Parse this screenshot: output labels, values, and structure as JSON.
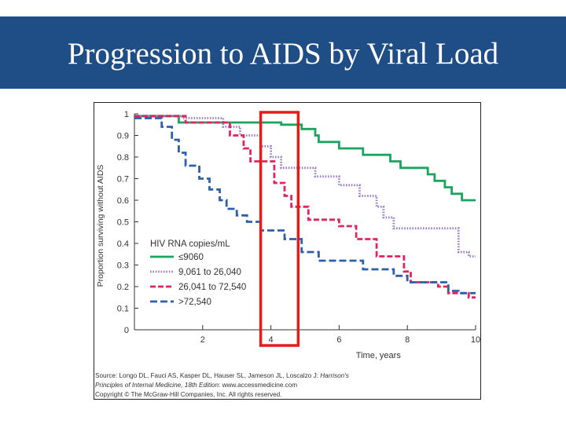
{
  "slide": {
    "title": "Progression to AIDS by Viral Load",
    "source_line1_plain": "Source: Longo DL, Fauci AS, Kasper DL, Hauser SL, Jameson JL, Loscalzo J: ",
    "source_line1_italic": "Harrison's",
    "source_line2_italic": "Principles of Internal Medicine, 18th Edition",
    "source_line2_plain": ": www.accessmedicine.com",
    "copyright": "Copyright © The McGraw-Hill Companies, Inc. All rights reserved."
  },
  "colors": {
    "title_bar": "#1f4e86",
    "highlight_box": "#e41c1c",
    "axis": "#333333"
  },
  "chart_data": {
    "type": "line",
    "step": true,
    "title": "",
    "xlabel": "Time, years",
    "ylabel": "Proportion surviving without AIDS",
    "xlim": [
      0,
      10
    ],
    "ylim": [
      0,
      1
    ],
    "xticks": [
      2,
      4,
      6,
      8,
      10
    ],
    "yticks": [
      0,
      0.1,
      0.2,
      0.3,
      0.4,
      0.5,
      0.6,
      0.7,
      0.8,
      0.9,
      1
    ],
    "ytick_labels": [
      "0",
      "0.1",
      "0.2",
      "0.3",
      "0.4",
      "0.5",
      "0.6",
      "0.7",
      "0.8",
      "0.9",
      "1"
    ],
    "legend_title": "HIV RNA copies/mL",
    "legend_position": "lower-left",
    "highlight": {
      "x_from": 3.7,
      "x_to": 4.8
    },
    "series": [
      {
        "name": "≤9060",
        "color": "#1aa45f",
        "dash": "solid",
        "points": [
          [
            0,
            0.99
          ],
          [
            1.3,
            0.99
          ],
          [
            1.3,
            0.96
          ],
          [
            4.3,
            0.96
          ],
          [
            4.3,
            0.95
          ],
          [
            4.9,
            0.95
          ],
          [
            4.9,
            0.93
          ],
          [
            5.3,
            0.93
          ],
          [
            5.3,
            0.9
          ],
          [
            5.4,
            0.9
          ],
          [
            5.4,
            0.87
          ],
          [
            6,
            0.87
          ],
          [
            6,
            0.84
          ],
          [
            6.7,
            0.84
          ],
          [
            6.7,
            0.81
          ],
          [
            7.5,
            0.81
          ],
          [
            7.5,
            0.78
          ],
          [
            7.8,
            0.78
          ],
          [
            7.8,
            0.75
          ],
          [
            8.6,
            0.75
          ],
          [
            8.6,
            0.72
          ],
          [
            8.8,
            0.72
          ],
          [
            8.8,
            0.69
          ],
          [
            9.1,
            0.69
          ],
          [
            9.1,
            0.66
          ],
          [
            9.3,
            0.66
          ],
          [
            9.3,
            0.63
          ],
          [
            9.6,
            0.63
          ],
          [
            9.6,
            0.6
          ],
          [
            10,
            0.6
          ]
        ]
      },
      {
        "name": "9,061 to 26,040",
        "color": "#9b7fc7",
        "dash": "dotted",
        "points": [
          [
            0,
            0.99
          ],
          [
            1.4,
            0.99
          ],
          [
            1.4,
            0.98
          ],
          [
            2.6,
            0.98
          ],
          [
            2.6,
            0.94
          ],
          [
            3.1,
            0.94
          ],
          [
            3.1,
            0.9
          ],
          [
            3.7,
            0.9
          ],
          [
            3.7,
            0.85
          ],
          [
            4,
            0.85
          ],
          [
            4,
            0.8
          ],
          [
            4.3,
            0.8
          ],
          [
            4.3,
            0.75
          ],
          [
            5.3,
            0.75
          ],
          [
            5.3,
            0.71
          ],
          [
            6,
            0.71
          ],
          [
            6,
            0.67
          ],
          [
            6.6,
            0.67
          ],
          [
            6.6,
            0.62
          ],
          [
            7.1,
            0.62
          ],
          [
            7.1,
            0.57
          ],
          [
            7.3,
            0.57
          ],
          [
            7.3,
            0.52
          ],
          [
            7.6,
            0.52
          ],
          [
            7.6,
            0.47
          ],
          [
            9.5,
            0.47
          ],
          [
            9.5,
            0.36
          ],
          [
            9.8,
            0.36
          ],
          [
            9.8,
            0.34
          ],
          [
            10,
            0.34
          ]
        ]
      },
      {
        "name": "26,041 to 72,540",
        "color": "#e0245e",
        "dash": "dashed",
        "points": [
          [
            0,
            0.99
          ],
          [
            1.5,
            0.99
          ],
          [
            1.5,
            0.96
          ],
          [
            2.8,
            0.96
          ],
          [
            2.8,
            0.9
          ],
          [
            3.2,
            0.9
          ],
          [
            3.2,
            0.84
          ],
          [
            3.4,
            0.84
          ],
          [
            3.4,
            0.78
          ],
          [
            4.1,
            0.78
          ],
          [
            4.1,
            0.68
          ],
          [
            4.4,
            0.68
          ],
          [
            4.4,
            0.62
          ],
          [
            4.6,
            0.62
          ],
          [
            4.6,
            0.57
          ],
          [
            5.1,
            0.57
          ],
          [
            5.1,
            0.51
          ],
          [
            6,
            0.51
          ],
          [
            6,
            0.48
          ],
          [
            6.5,
            0.48
          ],
          [
            6.5,
            0.42
          ],
          [
            7.1,
            0.42
          ],
          [
            7.1,
            0.34
          ],
          [
            7.9,
            0.34
          ],
          [
            7.9,
            0.27
          ],
          [
            8.1,
            0.27
          ],
          [
            8.1,
            0.22
          ],
          [
            8.9,
            0.22
          ],
          [
            8.9,
            0.2
          ],
          [
            9.2,
            0.2
          ],
          [
            9.2,
            0.17
          ],
          [
            9.8,
            0.17
          ],
          [
            9.8,
            0.15
          ],
          [
            10,
            0.15
          ]
        ]
      },
      {
        "name": ">72,540",
        "color": "#2d60ab",
        "dash": "longdash",
        "points": [
          [
            0,
            0.98
          ],
          [
            0.8,
            0.98
          ],
          [
            0.8,
            0.94
          ],
          [
            1.1,
            0.94
          ],
          [
            1.1,
            0.88
          ],
          [
            1.3,
            0.88
          ],
          [
            1.3,
            0.82
          ],
          [
            1.5,
            0.82
          ],
          [
            1.5,
            0.76
          ],
          [
            1.9,
            0.76
          ],
          [
            1.9,
            0.7
          ],
          [
            2.2,
            0.7
          ],
          [
            2.2,
            0.65
          ],
          [
            2.5,
            0.65
          ],
          [
            2.5,
            0.6
          ],
          [
            2.7,
            0.6
          ],
          [
            2.7,
            0.56
          ],
          [
            3,
            0.56
          ],
          [
            3,
            0.53
          ],
          [
            3.3,
            0.53
          ],
          [
            3.3,
            0.5
          ],
          [
            3.7,
            0.5
          ],
          [
            3.7,
            0.46
          ],
          [
            4.4,
            0.46
          ],
          [
            4.4,
            0.42
          ],
          [
            4.9,
            0.42
          ],
          [
            4.9,
            0.36
          ],
          [
            5.4,
            0.36
          ],
          [
            5.4,
            0.32
          ],
          [
            6.7,
            0.32
          ],
          [
            6.7,
            0.28
          ],
          [
            7.6,
            0.28
          ],
          [
            7.6,
            0.25
          ],
          [
            8,
            0.25
          ],
          [
            8,
            0.22
          ],
          [
            9.2,
            0.22
          ],
          [
            9.2,
            0.18
          ],
          [
            9.5,
            0.18
          ],
          [
            9.5,
            0.17
          ],
          [
            10,
            0.17
          ]
        ]
      }
    ]
  }
}
